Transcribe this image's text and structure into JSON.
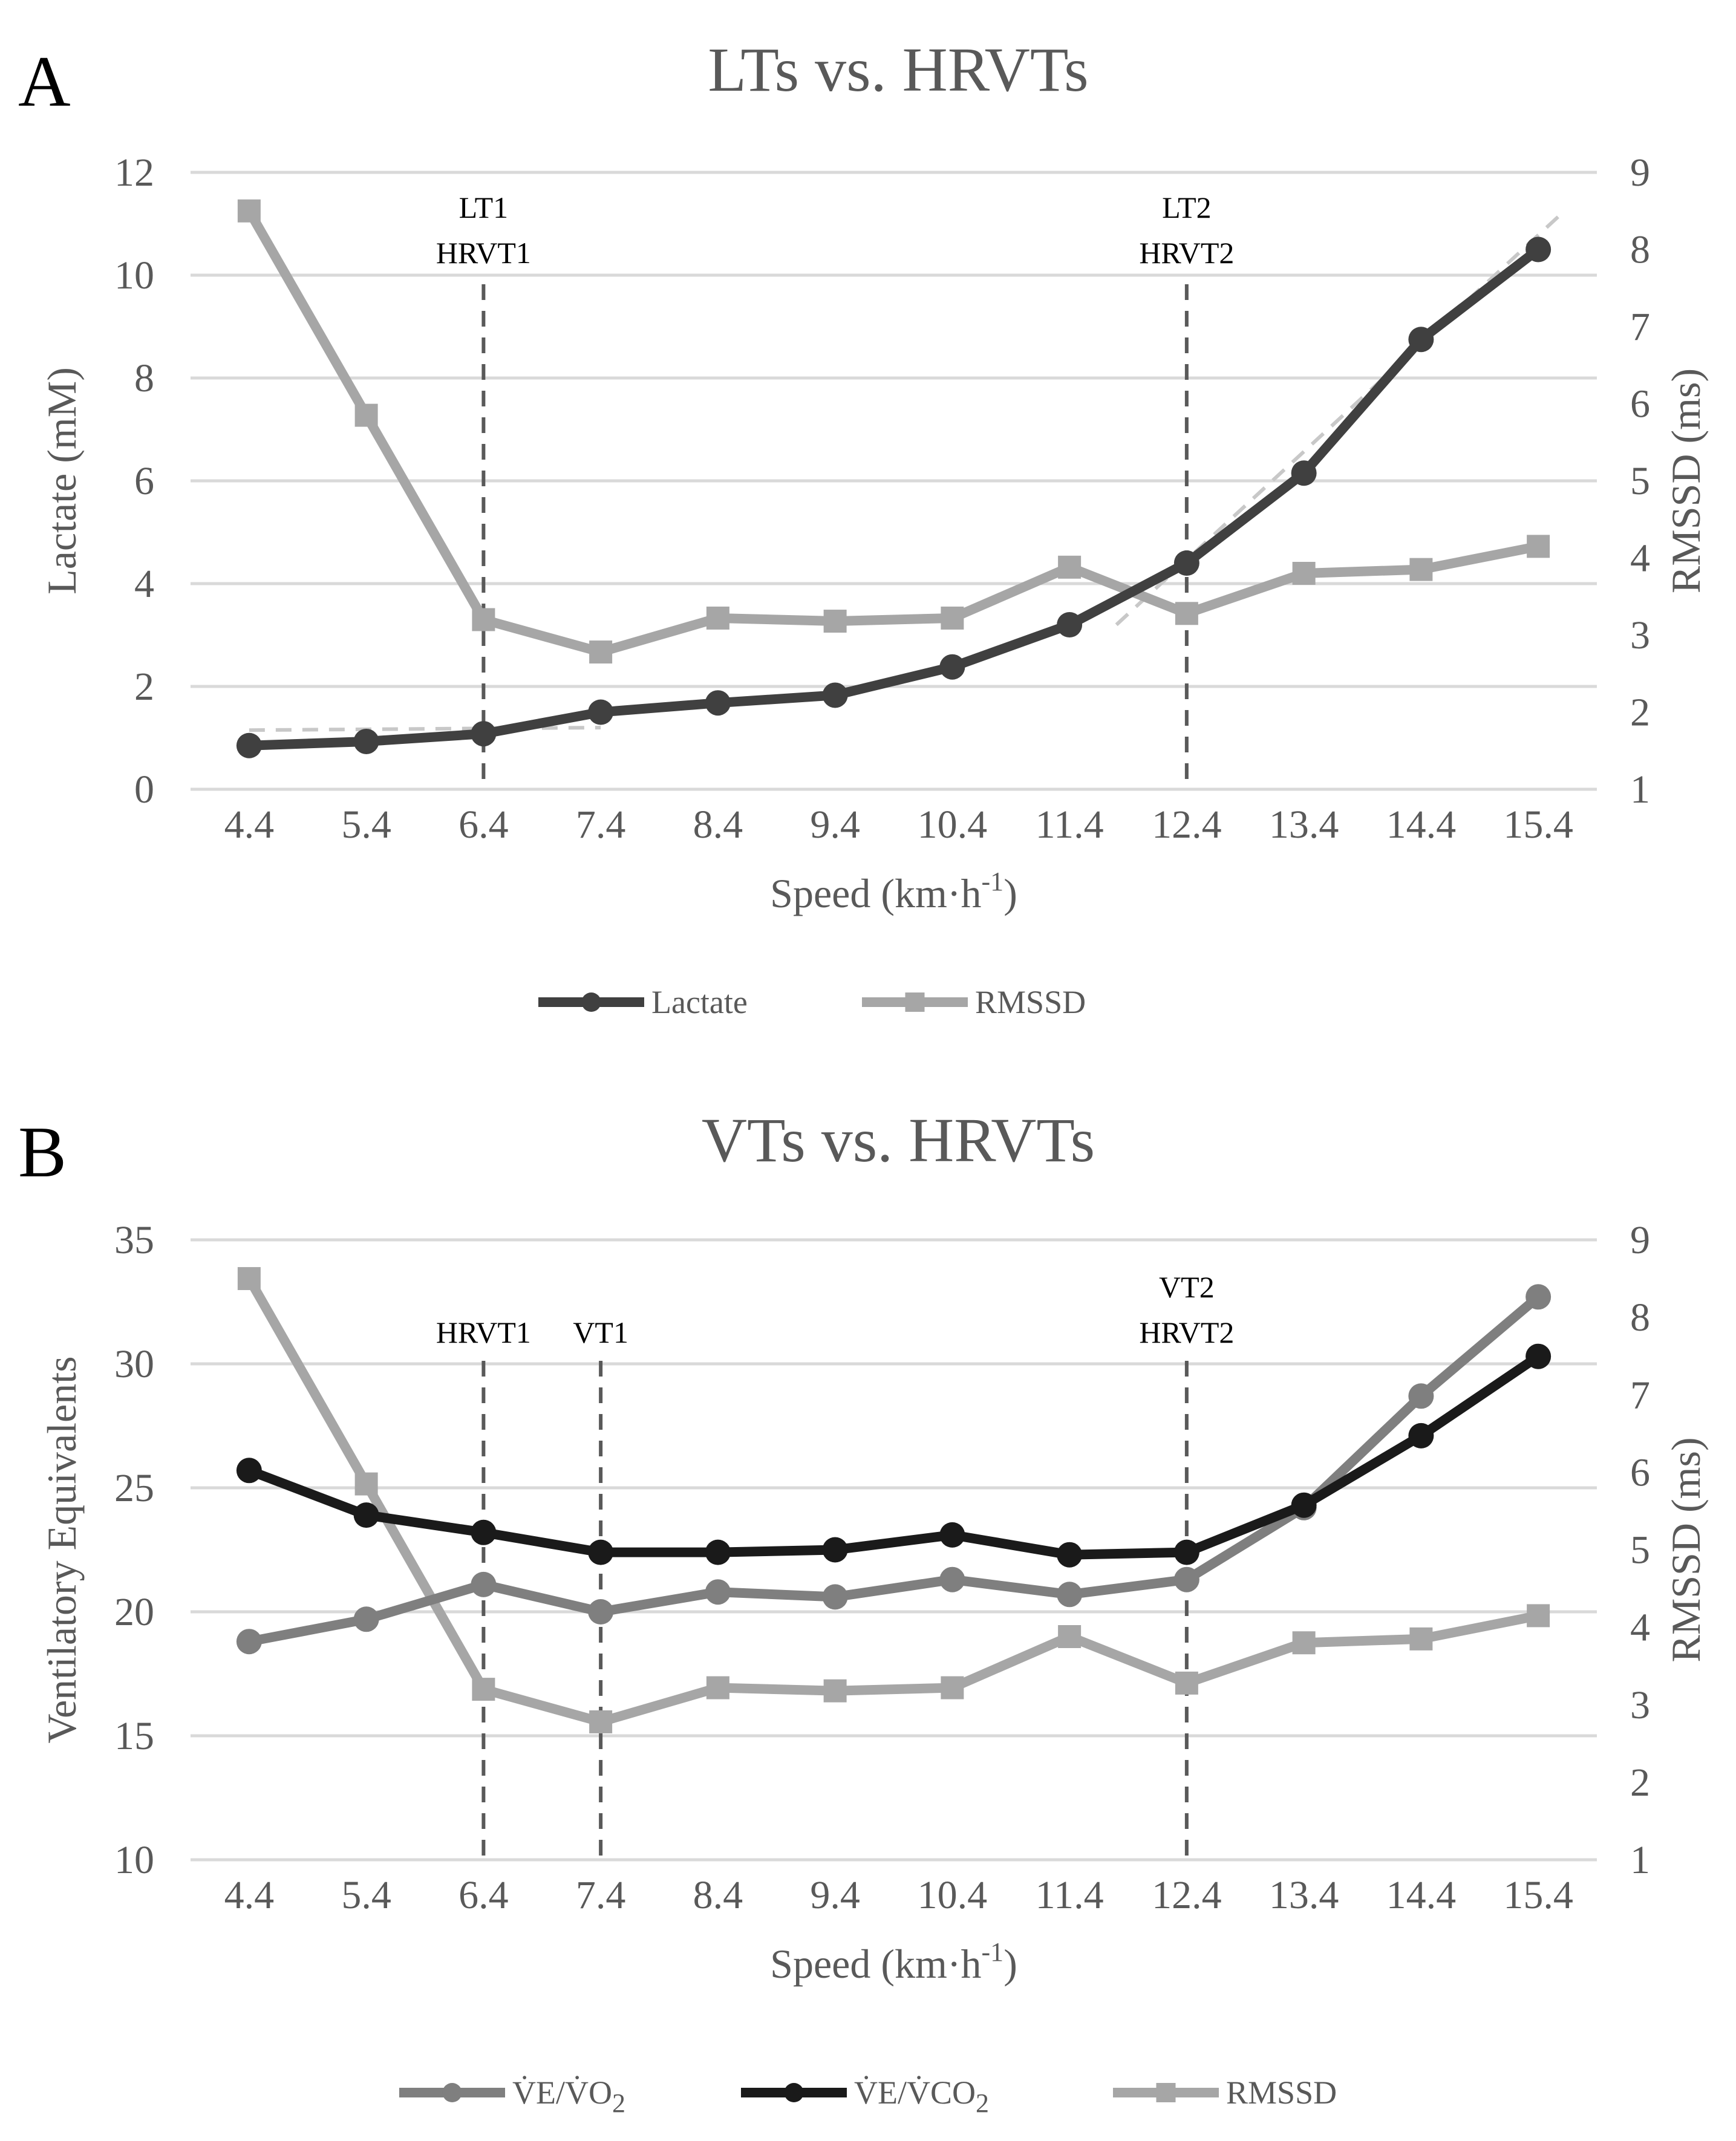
{
  "colors": {
    "lactate": "#404040",
    "rmssd": "#a6a6a6",
    "ve_vo2": "#7f7f7f",
    "ve_vco2": "#1a1a1a",
    "trend": "#c8c8c8",
    "grid": "#d9d9d9",
    "threshold_line": "#595959"
  },
  "chart_data": [
    {
      "panel": "A",
      "type": "line",
      "title": "LTs vs. HRVTs",
      "xlabel": "Speed (km·h",
      "xlabel_sup": "-1",
      "xlabel_end": ")",
      "ylabel_left": "Lactate (mM)",
      "ylabel_right": "RMSSD (ms)",
      "categories": [
        "4.4",
        "5.4",
        "6.4",
        "7.4",
        "8.4",
        "9.4",
        "10.4",
        "11.4",
        "12.4",
        "13.4",
        "14.4",
        "15.4"
      ],
      "ylim_left": [
        0,
        12
      ],
      "yticks_left": [
        "0",
        "2",
        "4",
        "6",
        "8",
        "10",
        "12"
      ],
      "ylim_right": [
        1,
        9
      ],
      "yticks_right": [
        "1",
        "2",
        "3",
        "4",
        "5",
        "6",
        "7",
        "8",
        "9"
      ],
      "grid": true,
      "legend_position": "bottom",
      "series": [
        {
          "name": "Lactate",
          "axis": "left",
          "marker": "circle",
          "color": "#404040",
          "values": [
            0.85,
            0.93,
            1.08,
            1.5,
            1.68,
            1.83,
            2.38,
            3.2,
            4.4,
            6.15,
            8.75,
            10.5
          ]
        },
        {
          "name": "RMSSD",
          "axis": "right",
          "marker": "square",
          "color": "#a6a6a6",
          "values": [
            8.5,
            5.85,
            3.2,
            2.78,
            3.22,
            3.18,
            3.22,
            3.88,
            3.28,
            3.8,
            3.85,
            4.15
          ]
        }
      ],
      "trendlines": [
        {
          "x": [
            4.4,
            7.4
          ],
          "y": [
            1.15,
            1.2
          ]
        },
        {
          "x": [
            11.8,
            15.6
          ],
          "y": [
            3.2,
            11.2
          ]
        }
      ],
      "threshold_lines": [
        {
          "x": 6.4,
          "labels": [
            "LT1",
            "HRVT1"
          ]
        },
        {
          "x": 12.4,
          "labels": [
            "LT2",
            "HRVT2"
          ]
        }
      ]
    },
    {
      "panel": "B",
      "type": "line",
      "title": "VTs vs. HRVTs",
      "xlabel": "Speed (km·h",
      "xlabel_sup": "-1",
      "xlabel_end": ")",
      "ylabel_left": "Ventilatory Equivalents",
      "ylabel_right": "RMSSD (ms)",
      "categories": [
        "4.4",
        "5.4",
        "6.4",
        "7.4",
        "8.4",
        "9.4",
        "10.4",
        "11.4",
        "12.4",
        "13.4",
        "14.4",
        "15.4"
      ],
      "ylim_left": [
        10,
        35
      ],
      "yticks_left": [
        "10",
        "15",
        "20",
        "25",
        "30",
        "35"
      ],
      "ylim_right": [
        1,
        9
      ],
      "yticks_right": [
        "1",
        "2",
        "3",
        "4",
        "5",
        "6",
        "7",
        "8",
        "9"
      ],
      "grid": true,
      "legend_position": "bottom",
      "series": [
        {
          "name": "V̇E/V̇O",
          "name_sub": "2",
          "axis": "left",
          "marker": "circle",
          "color": "#7f7f7f",
          "values": [
            18.8,
            19.7,
            21.1,
            20.0,
            20.8,
            20.6,
            21.3,
            20.7,
            21.3,
            24.2,
            28.7,
            32.7
          ]
        },
        {
          "name": "V̇E/V̇CO",
          "name_sub": "2",
          "axis": "left",
          "marker": "circle",
          "color": "#1a1a1a",
          "values": [
            25.7,
            23.9,
            23.2,
            22.4,
            22.4,
            22.5,
            23.1,
            22.3,
            22.4,
            24.3,
            27.1,
            30.3
          ]
        },
        {
          "name": "RMSSD",
          "axis": "right",
          "marker": "square",
          "color": "#a6a6a6",
          "values": [
            8.5,
            5.85,
            3.2,
            2.78,
            3.22,
            3.18,
            3.22,
            3.88,
            3.28,
            3.8,
            3.85,
            4.15
          ]
        }
      ],
      "threshold_lines": [
        {
          "x": 6.4,
          "labels": [
            "HRVT1"
          ]
        },
        {
          "x": 7.4,
          "labels": [
            "VT1"
          ]
        },
        {
          "x": 12.4,
          "labels": [
            "VT2",
            "HRVT2"
          ]
        }
      ]
    }
  ]
}
